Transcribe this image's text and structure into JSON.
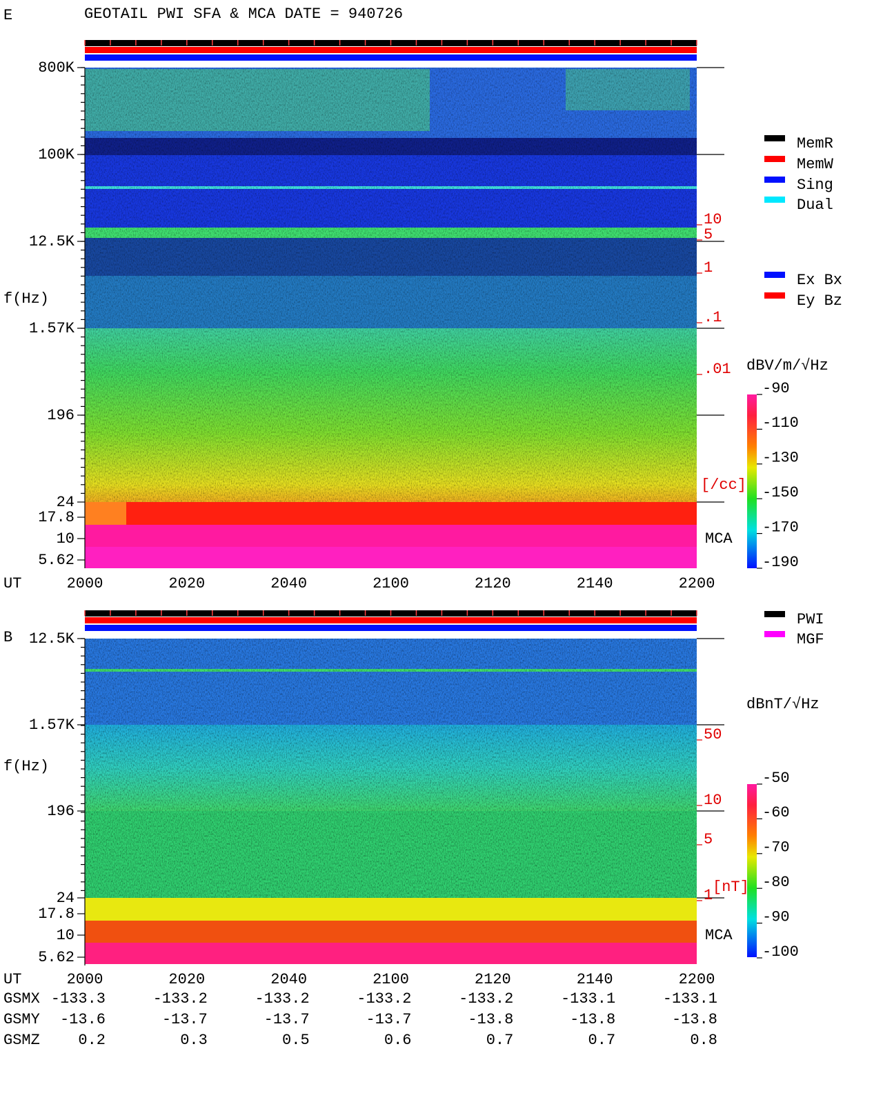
{
  "header": {
    "title": "GEOTAIL  PWI SFA & MCA   DATE = 940726"
  },
  "panels": [
    {
      "label": "E",
      "y_label": "f(Hz)",
      "y_ticks": [
        "800K",
        "100K",
        "12.5K",
        "1.57K",
        "196",
        "24",
        "17.8",
        "10",
        "5.62"
      ],
      "x_label": "UT",
      "time_ticks": [
        "2000",
        "2020",
        "2040",
        "2100",
        "2120",
        "2140",
        "2200"
      ],
      "scale_ticks": [
        "10",
        "5",
        "1",
        ".1",
        ".01"
      ],
      "scale_unit": "[/cc]",
      "mca_label": "MCA",
      "colorbar": {
        "unit": "dBV/m/√Hz",
        "ticks": [
          "-90",
          "-110",
          "-130",
          "-150",
          "-170",
          "-190"
        ]
      },
      "legend": [
        {
          "name": "MemR",
          "color": "#000000"
        },
        {
          "name": "MemW",
          "color": "#ff0000"
        },
        {
          "name": "Sing",
          "color": "#0010ff"
        },
        {
          "name": "Dual",
          "color": "#00e8ff"
        },
        {
          "name": "Ex Bx",
          "color": "#0010ff"
        },
        {
          "name": "Ey Bz",
          "color": "#ff0000"
        }
      ]
    },
    {
      "label": "B",
      "y_label": "f(Hz)",
      "y_ticks": [
        "12.5K",
        "1.57K",
        "196",
        "24",
        "17.8",
        "10",
        "5.62"
      ],
      "x_label": "UT",
      "time_ticks": [
        "2000",
        "2020",
        "2040",
        "2100",
        "2120",
        "2140",
        "2200"
      ],
      "scale_ticks": [
        "50",
        "10",
        "5",
        "1"
      ],
      "scale_unit": "[nT]",
      "mca_label": "MCA",
      "colorbar": {
        "unit": "dBnT/√Hz",
        "ticks": [
          "-50",
          "-60",
          "-70",
          "-80",
          "-90",
          "-100"
        ]
      },
      "legend": [
        {
          "name": "PWI",
          "color": "#000000"
        },
        {
          "name": "MGF",
          "color": "#ff00ff"
        }
      ]
    }
  ],
  "orbit": {
    "rows": [
      {
        "label": "GSMX",
        "values": [
          "-133.3",
          "-133.2",
          "-133.2",
          "-133.2",
          "-133.2",
          "-133.1",
          "-133.1"
        ]
      },
      {
        "label": "GSMY",
        "values": [
          "-13.6",
          "-13.7",
          "-13.7",
          "-13.7",
          "-13.8",
          "-13.8",
          "-13.8"
        ]
      },
      {
        "label": "GSMZ",
        "values": [
          "0.2",
          "0.3",
          "0.5",
          "0.6",
          "0.7",
          "0.7",
          "0.8"
        ]
      }
    ]
  }
}
